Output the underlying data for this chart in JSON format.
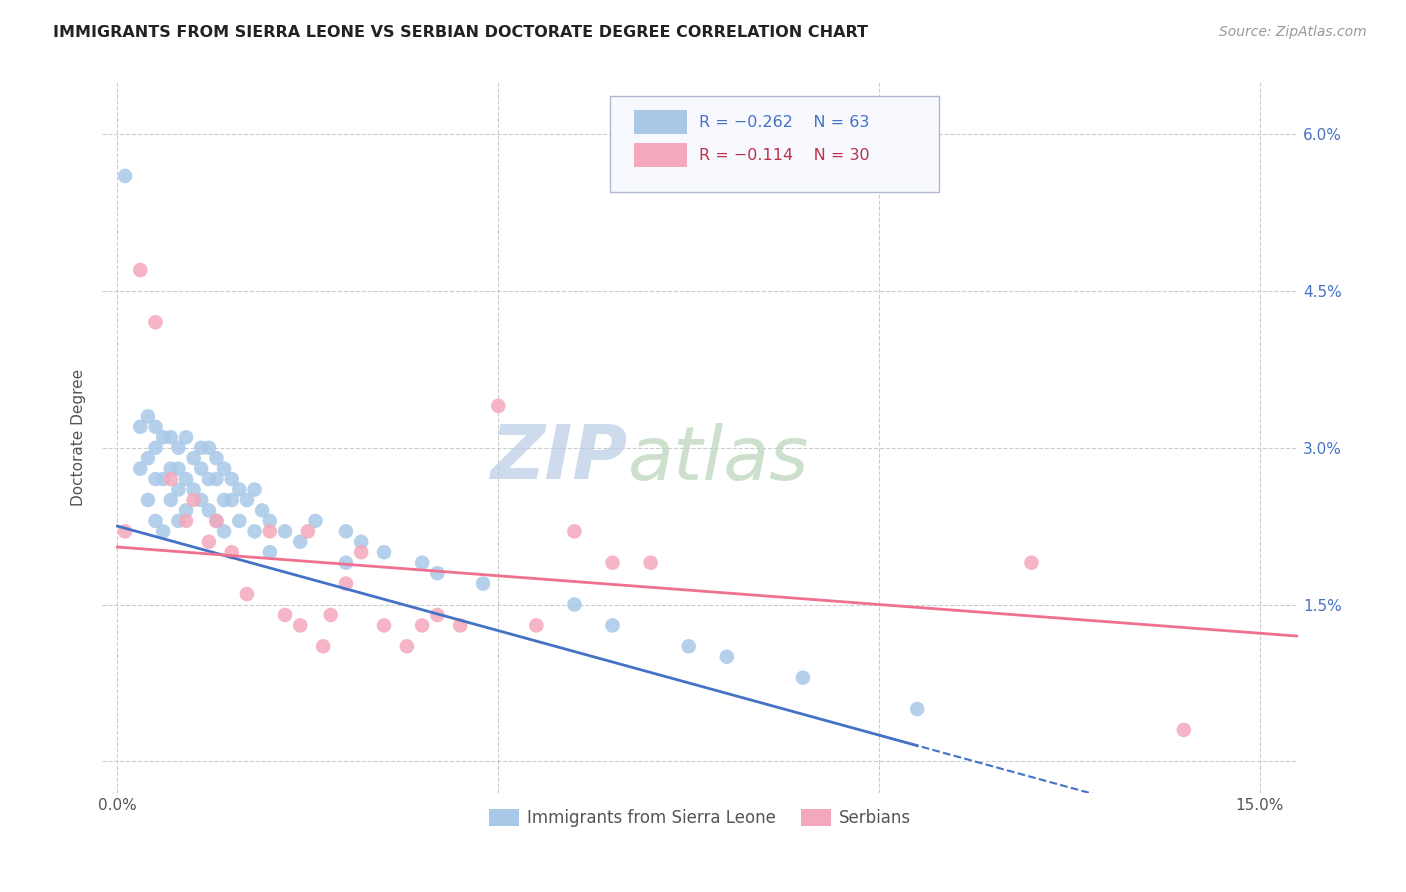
{
  "title": "IMMIGRANTS FROM SIERRA LEONE VS SERBIAN DOCTORATE DEGREE CORRELATION CHART",
  "source": "Source: ZipAtlas.com",
  "ylabel": "Doctorate Degree",
  "legend_r1": "R = −0.262",
  "legend_n1": "N = 63",
  "legend_r2": "R = −0.114",
  "legend_n2": "N = 30",
  "legend_label1": "Immigrants from Sierra Leone",
  "legend_label2": "Serbians",
  "color_blue": "#a8c8e8",
  "color_pink": "#f4a8bc",
  "color_blue_line": "#4472c4",
  "color_pink_line": "#f07090",
  "color_text_blue": "#4472c4",
  "color_text_pink": "#c0304a",
  "watermark_zip": "#c8d8ea",
  "watermark_atlas": "#c8d8c8",
  "background": "#ffffff",
  "blue_points": [
    [
      0.001,
      0.056
    ],
    [
      0.003,
      0.032
    ],
    [
      0.003,
      0.028
    ],
    [
      0.004,
      0.033
    ],
    [
      0.004,
      0.029
    ],
    [
      0.004,
      0.025
    ],
    [
      0.005,
      0.03
    ],
    [
      0.005,
      0.032
    ],
    [
      0.005,
      0.027
    ],
    [
      0.005,
      0.023
    ],
    [
      0.006,
      0.031
    ],
    [
      0.006,
      0.027
    ],
    [
      0.006,
      0.022
    ],
    [
      0.007,
      0.031
    ],
    [
      0.007,
      0.028
    ],
    [
      0.007,
      0.025
    ],
    [
      0.008,
      0.03
    ],
    [
      0.008,
      0.028
    ],
    [
      0.008,
      0.026
    ],
    [
      0.008,
      0.023
    ],
    [
      0.009,
      0.031
    ],
    [
      0.009,
      0.027
    ],
    [
      0.009,
      0.024
    ],
    [
      0.01,
      0.029
    ],
    [
      0.01,
      0.026
    ],
    [
      0.011,
      0.03
    ],
    [
      0.011,
      0.028
    ],
    [
      0.011,
      0.025
    ],
    [
      0.012,
      0.03
    ],
    [
      0.012,
      0.027
    ],
    [
      0.012,
      0.024
    ],
    [
      0.013,
      0.029
    ],
    [
      0.013,
      0.027
    ],
    [
      0.013,
      0.023
    ],
    [
      0.014,
      0.028
    ],
    [
      0.014,
      0.025
    ],
    [
      0.014,
      0.022
    ],
    [
      0.015,
      0.027
    ],
    [
      0.015,
      0.025
    ],
    [
      0.016,
      0.026
    ],
    [
      0.016,
      0.023
    ],
    [
      0.017,
      0.025
    ],
    [
      0.018,
      0.026
    ],
    [
      0.018,
      0.022
    ],
    [
      0.019,
      0.024
    ],
    [
      0.02,
      0.023
    ],
    [
      0.02,
      0.02
    ],
    [
      0.022,
      0.022
    ],
    [
      0.024,
      0.021
    ],
    [
      0.026,
      0.023
    ],
    [
      0.03,
      0.022
    ],
    [
      0.03,
      0.019
    ],
    [
      0.032,
      0.021
    ],
    [
      0.035,
      0.02
    ],
    [
      0.04,
      0.019
    ],
    [
      0.042,
      0.018
    ],
    [
      0.048,
      0.017
    ],
    [
      0.06,
      0.015
    ],
    [
      0.065,
      0.013
    ],
    [
      0.075,
      0.011
    ],
    [
      0.08,
      0.01
    ],
    [
      0.09,
      0.008
    ],
    [
      0.105,
      0.005
    ]
  ],
  "pink_points": [
    [
      0.001,
      0.022
    ],
    [
      0.003,
      0.047
    ],
    [
      0.005,
      0.042
    ],
    [
      0.007,
      0.027
    ],
    [
      0.009,
      0.023
    ],
    [
      0.01,
      0.025
    ],
    [
      0.012,
      0.021
    ],
    [
      0.013,
      0.023
    ],
    [
      0.015,
      0.02
    ],
    [
      0.017,
      0.016
    ],
    [
      0.02,
      0.022
    ],
    [
      0.022,
      0.014
    ],
    [
      0.024,
      0.013
    ],
    [
      0.025,
      0.022
    ],
    [
      0.027,
      0.011
    ],
    [
      0.028,
      0.014
    ],
    [
      0.03,
      0.017
    ],
    [
      0.032,
      0.02
    ],
    [
      0.035,
      0.013
    ],
    [
      0.038,
      0.011
    ],
    [
      0.04,
      0.013
    ],
    [
      0.042,
      0.014
    ],
    [
      0.045,
      0.013
    ],
    [
      0.05,
      0.034
    ],
    [
      0.055,
      0.013
    ],
    [
      0.06,
      0.022
    ],
    [
      0.065,
      0.019
    ],
    [
      0.07,
      0.019
    ],
    [
      0.12,
      0.019
    ],
    [
      0.14,
      0.003
    ]
  ],
  "xlim": [
    -0.002,
    0.155
  ],
  "ylim": [
    -0.003,
    0.065
  ],
  "x_ticks": [
    0.0,
    0.05,
    0.1,
    0.15
  ],
  "y_ticks": [
    0.0,
    0.015,
    0.03,
    0.045,
    0.06
  ],
  "y_tick_labels_right": [
    "",
    "1.5%",
    "3.0%",
    "4.5%",
    "6.0%"
  ],
  "x_tick_labels": [
    "0.0%",
    "",
    "",
    "15.0%"
  ]
}
